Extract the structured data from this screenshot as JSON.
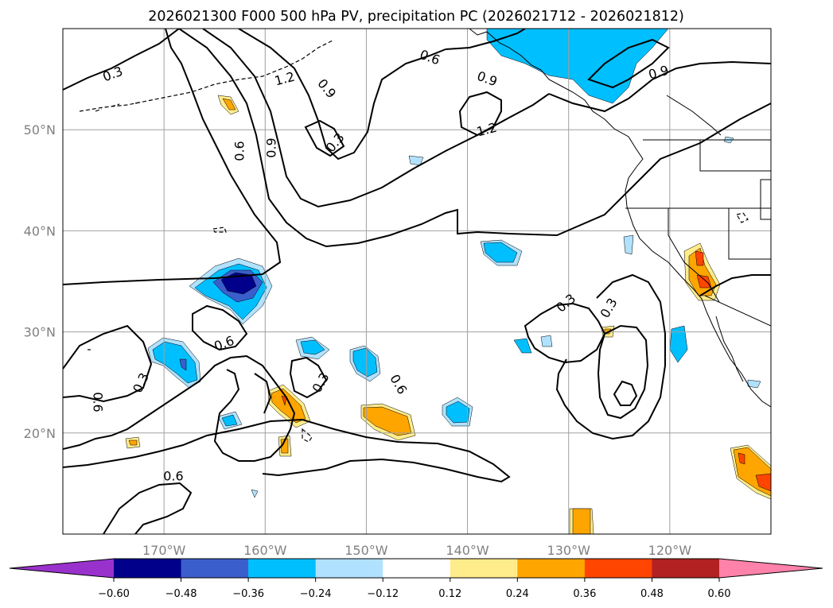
{
  "chart_data": {
    "type": "contour-map",
    "title": "2026021300 F000 500 hPa PV, precipitation PC (2026021712 - 2026021812)",
    "map": {
      "lon_range": [
        -180,
        -110
      ],
      "lat_range": [
        10,
        60
      ],
      "grid": true,
      "x_ticks": [
        "170°W",
        "160°W",
        "150°W",
        "140°W",
        "130°W",
        "120°W"
      ],
      "y_ticks": [
        "50°N",
        "40°N",
        "30°N",
        "20°N"
      ],
      "tick_color": "#808080"
    },
    "pv_contour_labels": [
      "0.3",
      "1.2",
      "0.9",
      "0.6",
      "0.6",
      "0.9",
      "0.3",
      "0.9",
      "1.2",
      "0.9",
      "0.6",
      "0.3",
      "0.6",
      "0.6",
      "0.3",
      "0.6",
      "0.3",
      "0.3"
    ],
    "colorbar": {
      "extend": "both",
      "ticks": [
        "−0.60",
        "−0.48",
        "−0.36",
        "−0.24",
        "−0.12",
        "0.12",
        "0.24",
        "0.36",
        "0.48",
        "0.60"
      ],
      "colors": [
        "#9932cc",
        "#00008b",
        "#3a5fcd",
        "#00bfff",
        "#b0e2ff",
        "#ffffff",
        "#ffec8b",
        "#ffa500",
        "#ff4500",
        "#b22222",
        "#ff82ab"
      ]
    },
    "shading_colors": {
      "neg_light": "#b0e2ff",
      "neg_mid": "#00bfff",
      "neg_strong": "#3a5fcd",
      "neg_max": "#00008b",
      "pos_light": "#ffec8b",
      "pos_mid": "#ffa500",
      "pos_strong": "#ff4500"
    }
  }
}
